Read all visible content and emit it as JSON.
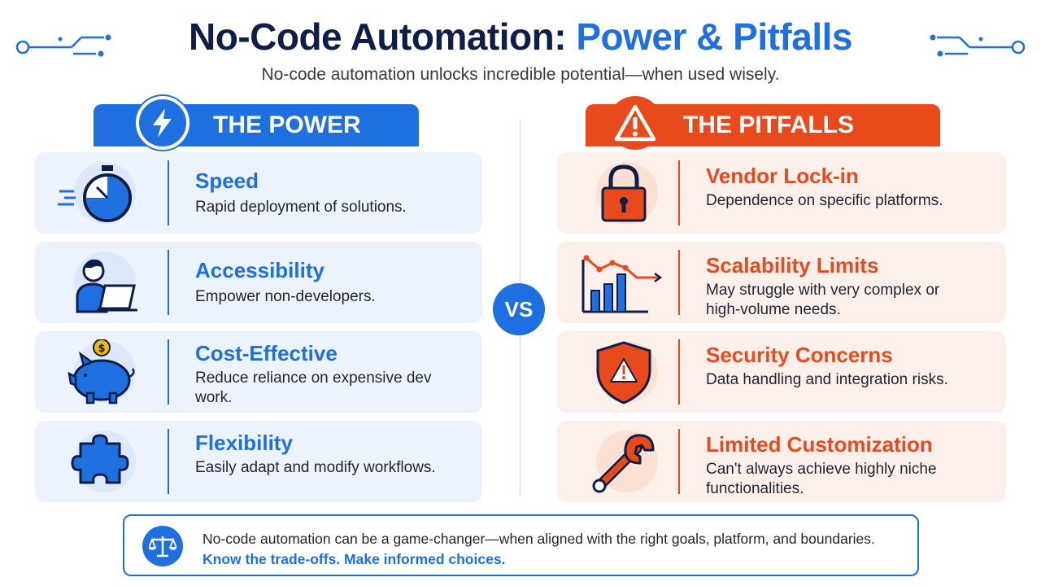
{
  "header": {
    "title_main": "No-Code Automation: ",
    "title_accent": "Power & Pitfalls",
    "subtitle": "No-code automation unlocks incredible potential—when used wisely."
  },
  "power": {
    "heading": "THE POWER",
    "icon": "lightning-icon",
    "items": [
      {
        "title": "Speed",
        "desc": "Rapid deployment of solutions.",
        "icon": "stopwatch-icon"
      },
      {
        "title": "Accessibility",
        "desc": "Empower non-developers.",
        "icon": "person-laptop-icon"
      },
      {
        "title": "Cost-Effective",
        "desc": "Reduce reliance on expensive dev work.",
        "icon": "piggy-bank-icon"
      },
      {
        "title": "Flexibility",
        "desc": "Easily adapt and modify workflows.",
        "icon": "puzzle-piece-icon"
      }
    ]
  },
  "pitfalls": {
    "heading": "THE PITFALLS",
    "icon": "warning-icon",
    "items": [
      {
        "title": "Vendor Lock-in",
        "desc": "Dependence on specific platforms.",
        "icon": "padlock-icon"
      },
      {
        "title": "Scalability Limits",
        "desc": "May struggle with very complex or high-volume needs.",
        "icon": "declining-chart-icon"
      },
      {
        "title": "Security Concerns",
        "desc": "Data handling and integration risks.",
        "icon": "warning-shield-icon"
      },
      {
        "title": "Limited Customization",
        "desc": "Can't always achieve highly niche functionalities.",
        "icon": "wrench-icon"
      }
    ]
  },
  "vs_label": "VS",
  "footer": {
    "line1": "No-code automation can be a game-changer—when aligned with the right goals, platform, and boundaries.",
    "line2": "Know the trade-offs. Make informed choices.",
    "icon": "balance-scale-icon"
  },
  "colors": {
    "power": "#1e6fe0",
    "pitfalls": "#e84a1c",
    "title": "#0f1e46"
  }
}
